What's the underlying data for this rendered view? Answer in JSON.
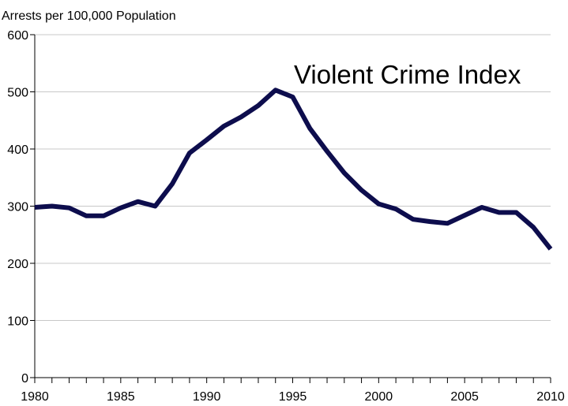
{
  "chart_data": {
    "type": "line",
    "title": "Violent Crime Index",
    "ylabel": "Arrests per 100,000 Population",
    "xlabel": "",
    "xlim": [
      1980,
      2010
    ],
    "ylim": [
      0,
      600
    ],
    "grid": true,
    "x_ticks": [
      "1980",
      "1985",
      "1990",
      "1995",
      "2000",
      "2005",
      "2010"
    ],
    "y_ticks": [
      "0",
      "100",
      "200",
      "300",
      "400",
      "500",
      "600"
    ],
    "line_color": "#0d0d4d",
    "grid_color": "#c8c8c8",
    "x": [
      1980,
      1981,
      1982,
      1983,
      1984,
      1985,
      1986,
      1987,
      1988,
      1989,
      1990,
      1991,
      1992,
      1993,
      1994,
      1995,
      1996,
      1997,
      1998,
      1999,
      2000,
      2001,
      2002,
      2003,
      2004,
      2005,
      2006,
      2007,
      2008,
      2009,
      2010
    ],
    "series": [
      {
        "values": [
          298,
          300,
          297,
          283,
          283,
          297,
          308,
          300,
          339,
          393,
          416,
          440,
          456,
          476,
          503,
          491,
          436,
          396,
          358,
          328,
          304,
          295,
          277,
          273,
          270,
          284,
          298,
          289,
          289,
          263,
          225
        ]
      }
    ]
  }
}
